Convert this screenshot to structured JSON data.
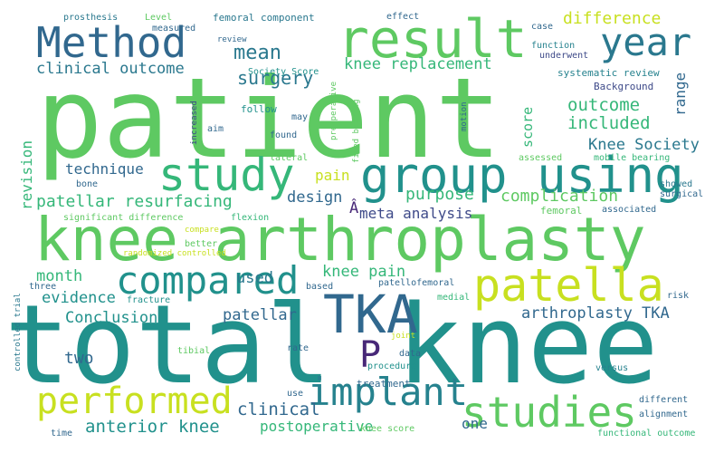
{
  "words": [
    {
      "text": "patient",
      "color": "#5ec962"
    },
    {
      "text": "total knee",
      "color": "#21918c"
    },
    {
      "text": "knee arthroplasty",
      "color": "#5ec962"
    },
    {
      "text": "result",
      "color": "#5ec962"
    },
    {
      "text": "group using",
      "color": "#21918c"
    },
    {
      "text": "Method",
      "color": "#31688e"
    },
    {
      "text": "study",
      "color": "#35b779"
    },
    {
      "text": "compared",
      "color": "#21918c"
    },
    {
      "text": "year",
      "color": "#2a788e"
    },
    {
      "text": "patella",
      "color": "#c8e020"
    },
    {
      "text": "TKA",
      "color": "#31688e"
    },
    {
      "text": "studies",
      "color": "#5ec962"
    },
    {
      "text": "performed",
      "color": "#c8e020"
    },
    {
      "text": "implant",
      "color": "#26828e"
    },
    {
      "text": "P",
      "color": "#482878"
    },
    {
      "text": "knee pain",
      "color": "#35b779"
    },
    {
      "text": "Knee Society",
      "color": "#2a788e"
    },
    {
      "text": "difference",
      "color": "#c8e020"
    },
    {
      "text": "surgery",
      "color": "#2a788e"
    },
    {
      "text": "mean",
      "color": "#2a788e"
    },
    {
      "text": "clinical outcome",
      "color": "#2a788e"
    },
    {
      "text": "knee replacement",
      "color": "#35b779"
    },
    {
      "text": "outcome",
      "color": "#35b779"
    },
    {
      "text": "included",
      "color": "#35b779"
    },
    {
      "text": "technique",
      "color": "#31688e"
    },
    {
      "text": "patellar resurfacing",
      "color": "#35b779"
    },
    {
      "text": "design",
      "color": "#31688e"
    },
    {
      "text": "purpose",
      "color": "#35b779"
    },
    {
      "text": "complication",
      "color": "#5ec962"
    },
    {
      "text": "meta analysis",
      "color": "#3e4a89"
    },
    {
      "text": "revision",
      "color": "#35b779"
    },
    {
      "text": "month",
      "color": "#35b779"
    },
    {
      "text": "used",
      "color": "#2a788e"
    },
    {
      "text": "pain",
      "color": "#c8e020"
    },
    {
      "text": "Conclusion",
      "color": "#21918c"
    },
    {
      "text": "evidence",
      "color": "#21918c"
    },
    {
      "text": "patellar",
      "color": "#31688e"
    },
    {
      "text": "arthroplasty TKA",
      "color": "#31688e"
    },
    {
      "text": "two",
      "color": "#31688e"
    },
    {
      "text": "clinical",
      "color": "#31688e"
    },
    {
      "text": "anterior knee",
      "color": "#21918c"
    },
    {
      "text": "postoperative",
      "color": "#35b779"
    },
    {
      "text": "one",
      "color": "#31688e"
    },
    {
      "text": "range",
      "color": "#31688e"
    },
    {
      "text": "score",
      "color": "#35b779"
    },
    {
      "text": "Society Score",
      "color": "#21918c"
    },
    {
      "text": "prosthesis",
      "color": "#2a788e"
    },
    {
      "text": "Level",
      "color": "#5ec962"
    },
    {
      "text": "measured",
      "color": "#31688e"
    },
    {
      "text": "femoral component",
      "color": "#2a788e"
    },
    {
      "text": "effect",
      "color": "#31688e"
    },
    {
      "text": "case",
      "color": "#31688e"
    },
    {
      "text": "function",
      "color": "#26828e"
    },
    {
      "text": "underwent",
      "color": "#3e4a89"
    },
    {
      "text": "review",
      "color": "#31688e"
    },
    {
      "text": "systematic review",
      "color": "#26828e"
    },
    {
      "text": "Background",
      "color": "#3e4a89"
    },
    {
      "text": "follow",
      "color": "#21918c"
    },
    {
      "text": "may",
      "color": "#31688e"
    },
    {
      "text": "aim",
      "color": "#31688e"
    },
    {
      "text": "found",
      "color": "#31688e"
    },
    {
      "text": "increased",
      "color": "#3e4a89"
    },
    {
      "text": "preoperative",
      "color": "#5ec962"
    },
    {
      "text": "motion",
      "color": "#31688e"
    },
    {
      "text": "fixed bearing",
      "color": "#5ec962"
    },
    {
      "text": "assessed",
      "color": "#5ec962"
    },
    {
      "text": "mobile bearing",
      "color": "#35b779"
    },
    {
      "text": "lateral",
      "color": "#5ec962"
    },
    {
      "text": "bone",
      "color": "#31688e"
    },
    {
      "text": "showed",
      "color": "#2a788e"
    },
    {
      "text": "surgical",
      "color": "#31688e"
    },
    {
      "text": "femoral",
      "color": "#5ec962"
    },
    {
      "text": "associated",
      "color": "#31688e"
    },
    {
      "text": "significant difference",
      "color": "#5ec962"
    },
    {
      "text": "flexion",
      "color": "#35b779"
    },
    {
      "text": "Â",
      "color": "#482878"
    },
    {
      "text": "compare",
      "color": "#c8e020"
    },
    {
      "text": "better",
      "color": "#5ec962"
    },
    {
      "text": "randomized controlled",
      "color": "#c8e020"
    },
    {
      "text": "three",
      "color": "#31688e"
    },
    {
      "text": "fracture",
      "color": "#21918c"
    },
    {
      "text": "based",
      "color": "#31688e"
    },
    {
      "text": "patellofemoral",
      "color": "#31688e"
    },
    {
      "text": "medial",
      "color": "#35b779"
    },
    {
      "text": "risk",
      "color": "#31688e"
    },
    {
      "text": "controlled trial",
      "color": "#2a788e"
    },
    {
      "text": "joint",
      "color": "#c8e020"
    },
    {
      "text": "data",
      "color": "#31688e"
    },
    {
      "text": "procedure",
      "color": "#21918c"
    },
    {
      "text": "tibial",
      "color": "#5ec962"
    },
    {
      "text": "rate",
      "color": "#31688e"
    },
    {
      "text": "versus",
      "color": "#26828e"
    },
    {
      "text": "treatment",
      "color": "#31688e"
    },
    {
      "text": "use",
      "color": "#31688e"
    },
    {
      "text": "different",
      "color": "#31688e"
    },
    {
      "text": "alignment",
      "color": "#31688e"
    },
    {
      "text": "knee score",
      "color": "#5ec962"
    },
    {
      "text": "time",
      "color": "#31688e"
    },
    {
      "text": "functional outcome",
      "color": "#35b779"
    }
  ]
}
